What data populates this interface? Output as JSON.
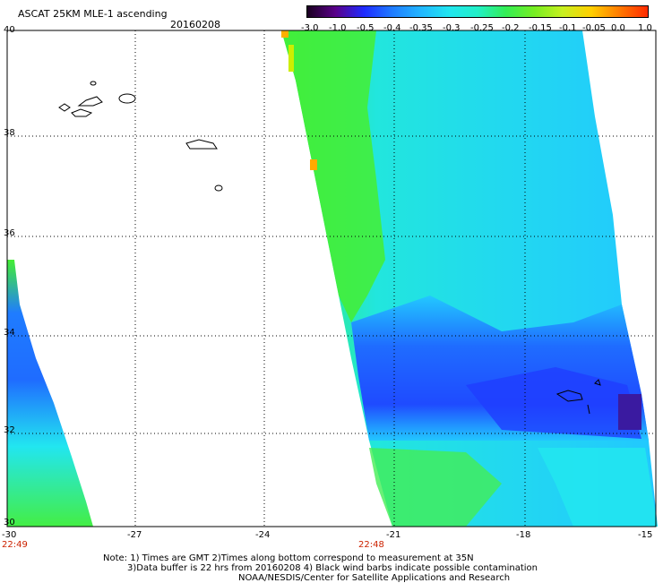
{
  "header": {
    "title": "ASCAT 25KM MLE-1 ascending",
    "date": "20160208"
  },
  "colorbar": {
    "labels": [
      "-3.0",
      "-1.0",
      "-0.5",
      "-0.4",
      "-0.35",
      "-0.3",
      "-0.25",
      "-0.2",
      "-0.15",
      "-0.1",
      "-0.05",
      "0.0",
      "1.0"
    ],
    "stops": [
      "#1a0020",
      "#5a008a",
      "#1f2bff",
      "#1f7cff",
      "#22b6ff",
      "#22e6f0",
      "#22f0c8",
      "#33ee55",
      "#77ee22",
      "#c8f020",
      "#ffd000",
      "#ff7a00",
      "#ff2a00"
    ]
  },
  "axes": {
    "y_labels": [
      "40",
      "38",
      "36",
      "34",
      "32",
      "30"
    ],
    "x_labels": [
      "-30",
      "-27",
      "-24",
      "-21",
      "-18",
      "-15"
    ],
    "time_labels": [
      "22:49",
      "22:48"
    ]
  },
  "notes": {
    "line1": "Note: 1) Times are GMT 2)Times along bottom correspond to measurement at 35N",
    "line2": "3)Data buffer is 22 hrs from 20160208 4) Black wind barbs indicate possible contamination",
    "line3": "NOAA/NESDIS/Center for Satellite Applications and Research"
  }
}
